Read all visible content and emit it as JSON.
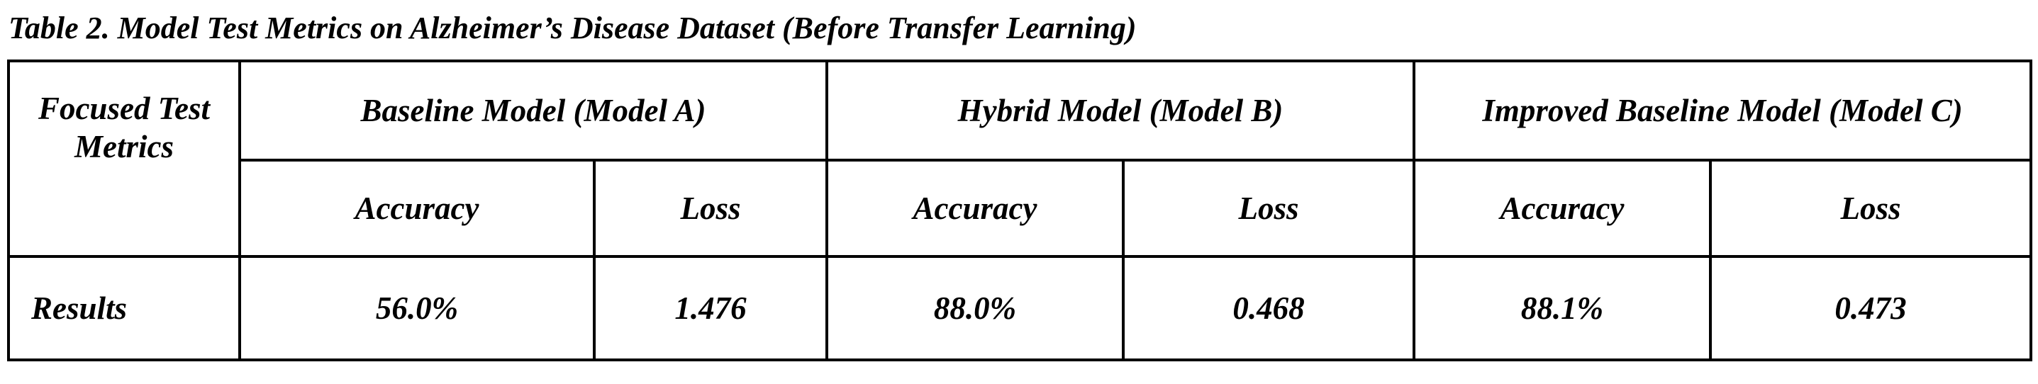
{
  "caption": "Table 2. Model Test Metrics on Alzheimer’s Disease Dataset (Before Transfer Learning)",
  "table": {
    "corner_header": "Focused Test Metrics",
    "models": [
      {
        "name": "Baseline Model (Model A)",
        "accuracy_label": "Accuracy",
        "loss_label": "Loss"
      },
      {
        "name": "Hybrid Model (Model B)",
        "accuracy_label": "Accuracy",
        "loss_label": "Loss"
      },
      {
        "name": "Improved Baseline Model (Model C)",
        "accuracy_label": "Accuracy",
        "loss_label": "Loss"
      }
    ],
    "results_row": {
      "label": "Results",
      "values": [
        "56.0%",
        "1.476",
        "88.0%",
        "0.468",
        "88.1%",
        "0.473"
      ]
    }
  }
}
